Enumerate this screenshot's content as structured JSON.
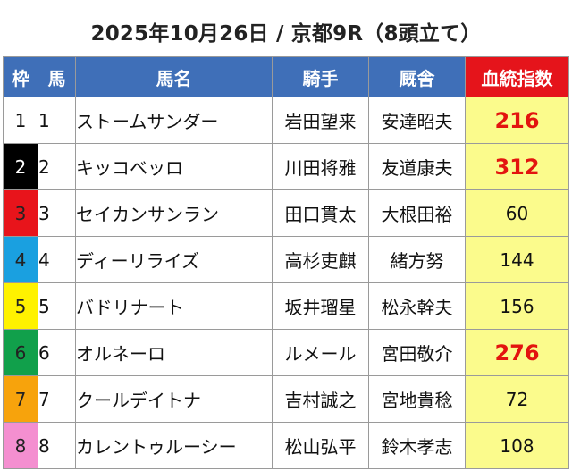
{
  "title": "2025年10月26日 / 京都9R（8頭立て）",
  "headers": {
    "waku": "枠",
    "uma": "馬",
    "horse": "馬名",
    "jockey": "騎手",
    "trainer": "厩舎",
    "index": "血統指数"
  },
  "colors": {
    "header_bg": "#3f6fb8",
    "index_header_bg": "#e5141b",
    "index_cell_bg": "#fbfb8c",
    "highlight_text": "#e3140f"
  },
  "rows": [
    {
      "waku": "1",
      "uma": "1",
      "horse": "ストームサンダー",
      "jockey": "岩田望来",
      "trainer": "安達昭夫",
      "index": "216",
      "highlight": true,
      "waku_bg": "#ffffff",
      "waku_fg": "#111111"
    },
    {
      "waku": "2",
      "uma": "2",
      "horse": "キッコベッロ",
      "jockey": "川田将雅",
      "trainer": "友道康夫",
      "index": "312",
      "highlight": true,
      "waku_bg": "#000000",
      "waku_fg": "#ffffff"
    },
    {
      "waku": "3",
      "uma": "3",
      "horse": "セイカンサンラン",
      "jockey": "田口貫太",
      "trainer": "大根田裕",
      "index": "60",
      "highlight": false,
      "waku_bg": "#e8141b",
      "waku_fg": "#222222"
    },
    {
      "waku": "4",
      "uma": "4",
      "horse": "ディーリライズ",
      "jockey": "高杉吏麒",
      "trainer": "緒方努",
      "index": "144",
      "highlight": false,
      "waku_bg": "#1aa0e0",
      "waku_fg": "#222222"
    },
    {
      "waku": "5",
      "uma": "5",
      "horse": "バドリナート",
      "jockey": "坂井瑠星",
      "trainer": "松永幹夫",
      "index": "156",
      "highlight": false,
      "waku_bg": "#fff200",
      "waku_fg": "#222222"
    },
    {
      "waku": "6",
      "uma": "6",
      "horse": "オルネーロ",
      "jockey": "ルメール",
      "trainer": "宮田敬介",
      "index": "276",
      "highlight": true,
      "waku_bg": "#11a04b",
      "waku_fg": "#222222"
    },
    {
      "waku": "7",
      "uma": "7",
      "horse": "クールデイトナ",
      "jockey": "吉村誠之",
      "trainer": "宮地貴稔",
      "index": "72",
      "highlight": false,
      "waku_bg": "#f7a30c",
      "waku_fg": "#222222"
    },
    {
      "waku": "8",
      "uma": "8",
      "horse": "カレントゥルーシー",
      "jockey": "松山弘平",
      "trainer": "鈴木孝志",
      "index": "108",
      "highlight": false,
      "waku_bg": "#f48fd0",
      "waku_fg": "#222222"
    }
  ]
}
